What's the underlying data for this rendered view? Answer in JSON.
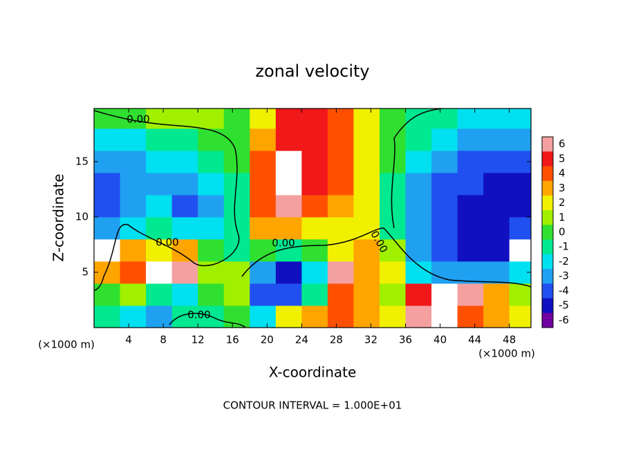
{
  "chart_data": {
    "type": "heatmap",
    "title": "zonal velocity",
    "x_label": "X-coordinate",
    "y_label": "Z-coordinate",
    "x_unit_label": "(×1000 m)",
    "z_unit_label": "(×1000 m)",
    "footer": "CONTOUR INTERVAL = 1.000E+01",
    "x": [
      1.5,
      4.5,
      7.5,
      10.5,
      13.5,
      16.5,
      19.5,
      22.5,
      25.5,
      28.5,
      31.5,
      34.5,
      37.5,
      40.5,
      43.5,
      46.5,
      49.5
    ],
    "y": [
      1,
      3,
      5,
      7,
      9,
      11,
      13,
      15,
      17,
      19
    ],
    "z": [
      [
        -1,
        -2,
        -3,
        -1,
        -1,
        0,
        -2,
        2,
        3,
        4,
        3,
        2,
        6,
        7,
        4,
        3,
        2
      ],
      [
        0,
        1,
        -1,
        -2,
        0,
        1,
        -4,
        -4,
        -1,
        4,
        3,
        1,
        5,
        7,
        6,
        3,
        1
      ],
      [
        3,
        4,
        7,
        6,
        1,
        1,
        -3,
        -5,
        -2,
        6,
        3,
        2,
        -2,
        -3,
        -3,
        -3,
        -2
      ],
      [
        7,
        3,
        2,
        3,
        0,
        -1,
        0,
        -1,
        0,
        2,
        3,
        1,
        -3,
        -4,
        -5,
        -5,
        7
      ],
      [
        -3,
        -2,
        -1,
        -2,
        -2,
        -1,
        3,
        3,
        2,
        2,
        2,
        -1,
        -3,
        -4,
        -5,
        -5,
        -4
      ],
      [
        -4,
        -3,
        -2,
        -4,
        -3,
        -1,
        4,
        6,
        4,
        3,
        2,
        -1,
        -3,
        -4,
        -5,
        -5,
        -5
      ],
      [
        -4,
        -3,
        -3,
        -3,
        -2,
        -1,
        4,
        7,
        5,
        4,
        2,
        -1,
        -3,
        -4,
        -4,
        -5,
        -5
      ],
      [
        -3,
        -3,
        -2,
        -2,
        -1,
        0,
        4,
        7,
        5,
        4,
        2,
        0,
        -2,
        -3,
        -4,
        -4,
        -4
      ],
      [
        -2,
        -2,
        -1,
        -1,
        0,
        0,
        3,
        5,
        5,
        4,
        2,
        0,
        -1,
        -2,
        -3,
        -3,
        -3
      ],
      [
        0,
        0,
        0.5,
        0.5,
        0.5,
        0,
        2,
        5,
        5,
        4,
        2,
        0,
        -1,
        -1,
        -2,
        -2,
        -2
      ]
    ],
    "xlim": [
      0,
      50.5
    ],
    "ylim": [
      0,
      19.8
    ],
    "xticks": [
      4,
      8,
      12,
      16,
      20,
      24,
      28,
      32,
      36,
      40,
      44,
      48
    ],
    "yticks": [
      5,
      10,
      15
    ],
    "colorbar": {
      "ticks": [
        6,
        5,
        4,
        3,
        2,
        1,
        0,
        -1,
        -2,
        -3,
        -4,
        -5,
        -6
      ],
      "colors": [
        "#f4a0a0",
        "#f01818",
        "#ff5000",
        "#ffa500",
        "#f0f000",
        "#a0f000",
        "#30e030",
        "#00e890",
        "#00e0f0",
        "#20a0f0",
        "#2050f0",
        "#1010c0",
        "#7000a0"
      ]
    },
    "contour_labels": [
      "0.00",
      "0.00",
      "0.00",
      "0.00",
      "0.00"
    ]
  }
}
